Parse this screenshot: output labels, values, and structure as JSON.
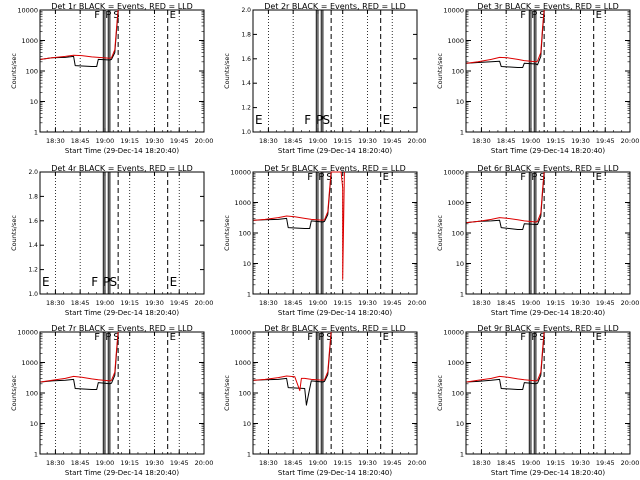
{
  "figure": {
    "xlabel": "Start Time (29-Dec-14 18:20:40)",
    "x_ticks": [
      "18:30",
      "18:45",
      "19:00",
      "19:15",
      "19:30",
      "19:45",
      "20:00"
    ],
    "y_label_counts": "Counts/sec"
  },
  "colors": {
    "events": "#000000",
    "lld": "#dd0000",
    "axis": "#000000"
  },
  "chart_data": [
    {
      "type": "line",
      "title": "Det 1r BLACK = Events, RED = LLD",
      "ylabel": "Counts/sec",
      "yscale": "log",
      "ylim": [
        1,
        10000
      ],
      "y_ticks": [
        "1",
        "10",
        "100",
        "1000",
        "10000"
      ],
      "xlim": [
        "18:20:40",
        "20:00"
      ],
      "markers": [
        "F",
        "P",
        "S",
        "E"
      ],
      "series": [
        {
          "name": "Events",
          "x": [
            "18:21",
            "18:28",
            "18:36",
            "18:41",
            "18:42",
            "18:52",
            "18:55",
            "18:56",
            "19:03",
            "19:04",
            "19:06",
            "19:07",
            "19:08"
          ],
          "y": [
            240,
            270,
            280,
            300,
            150,
            140,
            140,
            240,
            230,
            240,
            400,
            2000,
            9000
          ]
        },
        {
          "name": "LLD",
          "x": [
            "18:21",
            "18:28",
            "18:36",
            "18:41",
            "18:46",
            "18:52",
            "18:56",
            "19:03",
            "19:04",
            "19:06",
            "19:07",
            "19:08"
          ],
          "y": [
            240,
            270,
            300,
            330,
            320,
            290,
            280,
            260,
            270,
            500,
            2500,
            10000
          ]
        }
      ]
    },
    {
      "type": "line",
      "title": "Det 2r BLACK = Events, RED = LLD",
      "ylabel": "Counts/sec",
      "yscale": "log",
      "ylim": [
        1,
        2
      ],
      "y_ticks": [
        "1.0",
        "1.2",
        "1.4",
        "1.6",
        "1.8",
        "2.0"
      ],
      "xlim": [
        "18:20:40",
        "20:00"
      ],
      "markers": [
        "E",
        "F",
        "P",
        "S",
        "E"
      ],
      "series": []
    },
    {
      "type": "line",
      "title": "Det 3r BLACK = Events, RED = LLD",
      "ylabel": "Counts/sec",
      "yscale": "log",
      "ylim": [
        1,
        10000
      ],
      "y_ticks": [
        "1",
        "10",
        "100",
        "1000",
        "10000"
      ],
      "xlim": [
        "18:20:40",
        "20:00"
      ],
      "markers": [
        "F",
        "P",
        "S",
        "E"
      ],
      "series": [
        {
          "name": "Events",
          "x": [
            "18:21",
            "18:28",
            "18:36",
            "18:41",
            "18:42",
            "18:52",
            "18:55",
            "18:56",
            "19:03",
            "19:04",
            "19:06",
            "19:07",
            "19:08"
          ],
          "y": [
            180,
            190,
            200,
            210,
            140,
            130,
            130,
            180,
            170,
            160,
            300,
            2000,
            9000
          ]
        },
        {
          "name": "LLD",
          "x": [
            "18:21",
            "18:28",
            "18:36",
            "18:41",
            "18:46",
            "18:52",
            "18:56",
            "19:03",
            "19:04",
            "19:06",
            "19:07",
            "19:08"
          ],
          "y": [
            180,
            200,
            240,
            280,
            270,
            240,
            220,
            200,
            210,
            400,
            2500,
            10000
          ]
        }
      ]
    },
    {
      "type": "line",
      "title": "Det 4r BLACK = Events, RED = LLD",
      "ylabel": "Counts/sec",
      "yscale": "log",
      "ylim": [
        1,
        2
      ],
      "y_ticks": [
        "1.0",
        "1.2",
        "1.4",
        "1.6",
        "1.8",
        "2.0"
      ],
      "xlim": [
        "18:20:40",
        "20:00"
      ],
      "markers": [
        "E",
        "F",
        "P",
        "S",
        "E"
      ],
      "series": []
    },
    {
      "type": "line",
      "title": "Det 5r BLACK = Events, RED = LLD",
      "ylabel": "Counts/sec",
      "yscale": "log",
      "ylim": [
        1,
        10000
      ],
      "y_ticks": [
        "1",
        "10",
        "100",
        "1000",
        "10000"
      ],
      "xlim": [
        "18:20:40",
        "20:00"
      ],
      "markers": [
        "F",
        "P",
        "S",
        "E"
      ],
      "series": [
        {
          "name": "Events",
          "x": [
            "18:21",
            "18:28",
            "18:36",
            "18:41",
            "18:42",
            "18:52",
            "18:55",
            "18:56",
            "19:03",
            "19:04",
            "19:06",
            "19:07",
            "19:08"
          ],
          "y": [
            260,
            270,
            280,
            300,
            150,
            140,
            140,
            250,
            230,
            240,
            400,
            2000,
            9000
          ]
        },
        {
          "name": "LLD",
          "x": [
            "18:21",
            "18:28",
            "18:36",
            "18:41",
            "18:46",
            "18:52",
            "18:56",
            "19:03",
            "19:04",
            "19:06",
            "19:07",
            "19:08",
            "19:14",
            "19:15",
            "19:15",
            "19:16"
          ],
          "y": [
            260,
            280,
            320,
            360,
            340,
            300,
            280,
            260,
            270,
            500,
            2500,
            10000,
            12000,
            3000,
            3,
            10000
          ]
        }
      ]
    },
    {
      "type": "line",
      "title": "Det 6r BLACK = Events, RED = LLD",
      "ylabel": "Counts/sec",
      "yscale": "log",
      "ylim": [
        1,
        10000
      ],
      "y_ticks": [
        "1",
        "10",
        "100",
        "1000",
        "10000"
      ],
      "xlim": [
        "18:20:40",
        "20:00"
      ],
      "markers": [
        "F",
        "P",
        "S",
        "E"
      ],
      "series": [
        {
          "name": "Events",
          "x": [
            "18:21",
            "18:28",
            "18:36",
            "18:41",
            "18:42",
            "18:52",
            "18:55",
            "18:56",
            "19:03",
            "19:04",
            "19:06",
            "19:07",
            "19:08"
          ],
          "y": [
            220,
            240,
            250,
            260,
            150,
            130,
            130,
            200,
            190,
            190,
            350,
            2000,
            9000
          ]
        },
        {
          "name": "LLD",
          "x": [
            "18:21",
            "18:28",
            "18:36",
            "18:41",
            "18:46",
            "18:52",
            "18:56",
            "19:03",
            "19:04",
            "19:06",
            "19:07",
            "19:08"
          ],
          "y": [
            220,
            240,
            280,
            320,
            300,
            270,
            250,
            230,
            240,
            450,
            2500,
            10000
          ]
        }
      ]
    },
    {
      "type": "line",
      "title": "Det 7r BLACK = Events, RED = LLD",
      "ylabel": "Counts/sec",
      "yscale": "log",
      "ylim": [
        1,
        10000
      ],
      "y_ticks": [
        "1",
        "10",
        "100",
        "1000",
        "10000"
      ],
      "xlim": [
        "18:20:40",
        "20:00"
      ],
      "markers": [
        "F",
        "P",
        "S",
        "E"
      ],
      "series": [
        {
          "name": "Events",
          "x": [
            "18:21",
            "18:28",
            "18:36",
            "18:41",
            "18:42",
            "18:52",
            "18:55",
            "18:56",
            "19:03",
            "19:04",
            "19:06",
            "19:07",
            "19:08"
          ],
          "y": [
            230,
            250,
            260,
            280,
            140,
            130,
            130,
            220,
            200,
            210,
            380,
            2000,
            9000
          ]
        },
        {
          "name": "LLD",
          "x": [
            "18:21",
            "18:28",
            "18:36",
            "18:41",
            "18:46",
            "18:52",
            "18:56",
            "19:03",
            "19:04",
            "19:06",
            "19:07",
            "19:08"
          ],
          "y": [
            230,
            260,
            300,
            350,
            330,
            290,
            270,
            250,
            260,
            480,
            2500,
            10000
          ]
        }
      ]
    },
    {
      "type": "line",
      "title": "Det 8r BLACK = Events, RED = LLD",
      "ylabel": "Counts/sec",
      "yscale": "log",
      "ylim": [
        1,
        10000
      ],
      "y_ticks": [
        "1",
        "10",
        "100",
        "1000",
        "10000"
      ],
      "xlim": [
        "18:20:40",
        "20:00"
      ],
      "markers": [
        "F",
        "P",
        "S",
        "E"
      ],
      "series": [
        {
          "name": "Events",
          "x": [
            "18:21",
            "18:28",
            "18:36",
            "18:41",
            "18:42",
            "18:52",
            "18:53",
            "18:55",
            "18:56",
            "19:03",
            "19:04",
            "19:06",
            "19:07",
            "19:08"
          ],
          "y": [
            260,
            270,
            280,
            300,
            150,
            140,
            40,
            140,
            250,
            230,
            240,
            400,
            2000,
            9000
          ]
        },
        {
          "name": "LLD",
          "x": [
            "18:21",
            "18:28",
            "18:36",
            "18:41",
            "18:46",
            "18:49",
            "18:50",
            "18:52",
            "18:56",
            "19:03",
            "19:04",
            "19:06",
            "19:07",
            "19:08"
          ],
          "y": [
            260,
            280,
            320,
            360,
            340,
            120,
            300,
            300,
            280,
            260,
            270,
            500,
            2500,
            10000
          ]
        }
      ]
    },
    {
      "type": "line",
      "title": "Det 9r BLACK = Events, RED = LLD",
      "ylabel": "Counts/sec",
      "yscale": "log",
      "ylim": [
        1,
        10000
      ],
      "y_ticks": [
        "1",
        "10",
        "100",
        "1000",
        "10000"
      ],
      "xlim": [
        "18:20:40",
        "20:00"
      ],
      "markers": [
        "F",
        "P",
        "S",
        "E"
      ],
      "series": [
        {
          "name": "Events",
          "x": [
            "18:21",
            "18:28",
            "18:36",
            "18:41",
            "18:42",
            "18:52",
            "18:55",
            "18:56",
            "19:03",
            "19:04",
            "19:06",
            "19:07",
            "19:08"
          ],
          "y": [
            230,
            240,
            260,
            280,
            140,
            130,
            130,
            220,
            200,
            210,
            380,
            2000,
            9000
          ]
        },
        {
          "name": "LLD",
          "x": [
            "18:21",
            "18:28",
            "18:36",
            "18:41",
            "18:46",
            "18:52",
            "18:56",
            "19:03",
            "19:04",
            "19:06",
            "19:07",
            "19:08"
          ],
          "y": [
            230,
            260,
            300,
            350,
            330,
            290,
            270,
            250,
            260,
            480,
            2500,
            10000
          ]
        }
      ]
    }
  ]
}
